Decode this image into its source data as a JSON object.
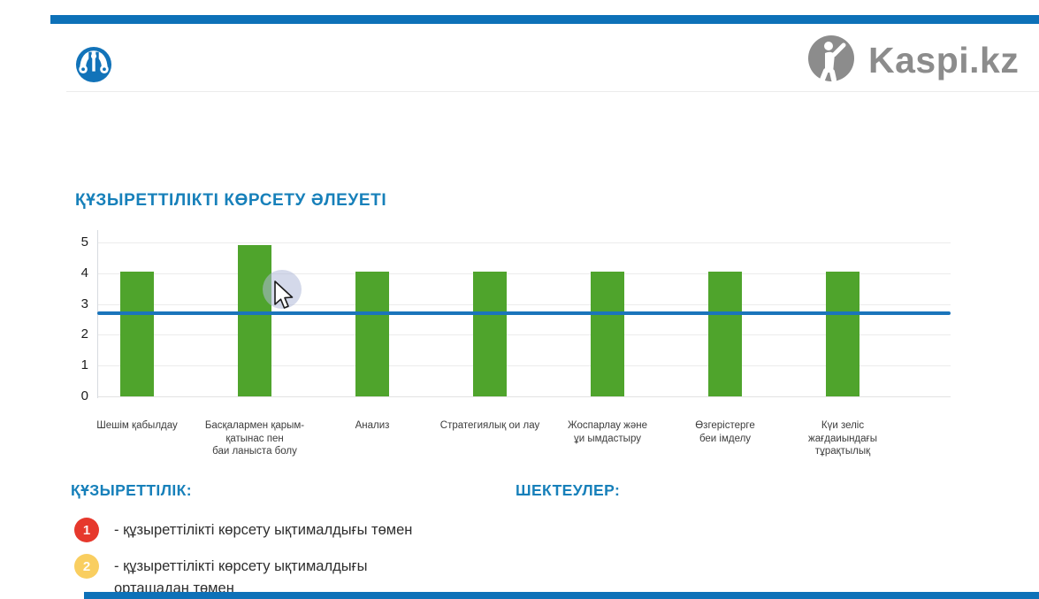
{
  "header": {
    "brand_text": "Kaspi.kz",
    "emblem_icon": "kaspi-bank-ornament",
    "brand_icon": "kaspi-person-logo"
  },
  "title": "ҚҰЗЫРЕТТІЛІКТІ КӨРСЕТУ ӘЛЕУЕТІ",
  "chart_data": {
    "type": "bar",
    "title": "ҚҰЗЫРЕТТІЛІКТІ КӨРСЕТУ ӘЛЕУЕТІ",
    "categories": [
      "Шешім қабылдау",
      "Басқалармен қарым-қатынас пен баи ланыста болу",
      "Анализ",
      "Стратегиялық ои лау",
      "Жоспарлау және ұи ымдастыру",
      "Өзгерістерге беи імделу",
      "Күи зеліс жағдаиындағы тұрақтылық"
    ],
    "category_lines": [
      [
        "Шешім қабылдау"
      ],
      [
        "Басқалармен қарым-",
        "қатынас пен",
        "баи ланыста болу"
      ],
      [
        "Анализ"
      ],
      [
        "Стратегиялық ои лау"
      ],
      [
        "Жоспарлау және",
        "ұи ымдастыру"
      ],
      [
        "Өзгерістерге",
        "беи імделу"
      ],
      [
        "Күи зеліс",
        "жағдаиындағы",
        "тұрақтылық"
      ]
    ],
    "values": [
      4.05,
      4.9,
      4.05,
      4.05,
      4.05,
      4.05,
      4.05
    ],
    "yticks": [
      0,
      1,
      2,
      3,
      4,
      5
    ],
    "ylim": [
      0,
      5
    ],
    "grid": true,
    "legend_position": "none",
    "threshold_line": {
      "value": 2.7,
      "color": "#1b75bb"
    },
    "bar_color": "#4fa42c"
  },
  "sections": {
    "competency": "ҚҰЗЫРЕТТІЛІК:",
    "limitations": "ШЕКТЕУЛЕР:"
  },
  "legend": [
    {
      "number": "1",
      "color": "#e6382c",
      "lines": [
        "- құзыреттілікті көрсету ықтималдығы төмен"
      ],
      "text": "- құзыреттілікті көрсету ықтималдығы төмен"
    },
    {
      "number": "2",
      "color": "#f9ce60",
      "lines": [
        "- құзыреттілікті көрсету ықтималдығы",
        "орташадан төмен"
      ],
      "text": "- құзыреттілікті көрсету ықтималдығы орташадан төмен"
    }
  ],
  "colors": {
    "accent_blue": "#0d71b8",
    "title_blue": "#1780ba",
    "bar_green": "#4fa42c",
    "threshold_blue": "#1b75bb",
    "legend_red": "#e6382c",
    "legend_yellow": "#f9ce60",
    "logo_gray": "#8c8c8c"
  }
}
